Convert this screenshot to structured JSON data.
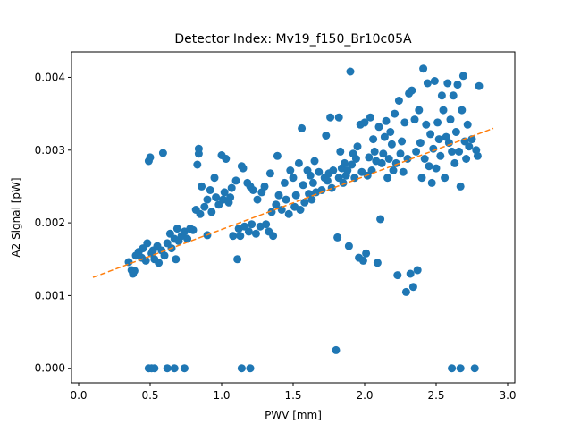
{
  "chart_data": {
    "type": "scatter",
    "title": "Detector Index: Mv19_f150_Br10c05A",
    "xlabel": "PWV [mm]",
    "ylabel": "A2 Signal [pW]",
    "xlim": [
      -0.05,
      3.05
    ],
    "ylim": [
      -0.0002,
      0.00435
    ],
    "xticks": [
      {
        "value": 0.0,
        "label": "0.0"
      },
      {
        "value": 0.5,
        "label": "0.5"
      },
      {
        "value": 1.0,
        "label": "1.0"
      },
      {
        "value": 1.5,
        "label": "1.5"
      },
      {
        "value": 2.0,
        "label": "2.0"
      },
      {
        "value": 2.5,
        "label": "2.5"
      },
      {
        "value": 3.0,
        "label": "3.0"
      }
    ],
    "yticks": [
      {
        "value": 0.0,
        "label": "0.000"
      },
      {
        "value": 0.001,
        "label": "0.001"
      },
      {
        "value": 0.002,
        "label": "0.002"
      },
      {
        "value": 0.003,
        "label": "0.003"
      },
      {
        "value": 0.004,
        "label": "0.004"
      }
    ],
    "grid": false,
    "series": [
      {
        "name": "data",
        "kind": "scatter",
        "color": "#1f77b4",
        "points": [
          [
            0.35,
            0.00146
          ],
          [
            0.37,
            0.00135
          ],
          [
            0.38,
            0.0013
          ],
          [
            0.39,
            0.00134
          ],
          [
            0.4,
            0.00155
          ],
          [
            0.42,
            0.0016
          ],
          [
            0.44,
            0.00152
          ],
          [
            0.45,
            0.00165
          ],
          [
            0.47,
            0.00148
          ],
          [
            0.48,
            0.00172
          ],
          [
            0.49,
            0.00285
          ],
          [
            0.5,
            0.0029
          ],
          [
            0.51,
            0.00158
          ],
          [
            0.52,
            0.00162
          ],
          [
            0.53,
            0.0015
          ],
          [
            0.55,
            0.00168
          ],
          [
            0.56,
            0.00145
          ],
          [
            0.58,
            0.00162
          ],
          [
            0.59,
            0.00296
          ],
          [
            0.6,
            0.00155
          ],
          [
            0.62,
            0.00172
          ],
          [
            0.64,
            0.00185
          ],
          [
            0.65,
            0.00165
          ],
          [
            0.67,
            0.00178
          ],
          [
            0.68,
            0.0015
          ],
          [
            0.69,
            0.00192
          ],
          [
            0.7,
            0.00175
          ],
          [
            0.72,
            0.00182
          ],
          [
            0.74,
            0.00188
          ],
          [
            0.76,
            0.00178
          ],
          [
            0.78,
            0.00192
          ],
          [
            0.8,
            0.0019
          ],
          [
            0.82,
            0.00218
          ],
          [
            0.83,
            0.0028
          ],
          [
            0.84,
            0.00295
          ],
          [
            0.84,
            0.00302
          ],
          [
            0.85,
            0.00212
          ],
          [
            0.86,
            0.0025
          ],
          [
            0.88,
            0.00222
          ],
          [
            0.9,
            0.00232
          ],
          [
            0.9,
            0.00183
          ],
          [
            0.92,
            0.00245
          ],
          [
            0.93,
            0.00215
          ],
          [
            0.95,
            0.00262
          ],
          [
            0.96,
            0.00235
          ],
          [
            0.98,
            0.00225
          ],
          [
            1.0,
            0.00293
          ],
          [
            1.01,
            0.00232
          ],
          [
            1.02,
            0.00242
          ],
          [
            1.03,
            0.00288
          ],
          [
            1.05,
            0.00228
          ],
          [
            1.06,
            0.00235
          ],
          [
            1.07,
            0.00248
          ],
          [
            1.08,
            0.00182
          ],
          [
            1.1,
            0.00258
          ],
          [
            1.11,
            0.0015
          ],
          [
            1.12,
            0.00192
          ],
          [
            1.13,
            0.00182
          ],
          [
            1.14,
            0.00278
          ],
          [
            1.15,
            0.00275
          ],
          [
            1.16,
            0.00195
          ],
          [
            1.18,
            0.00255
          ],
          [
            1.19,
            0.00188
          ],
          [
            1.2,
            0.0025
          ],
          [
            1.21,
            0.00198
          ],
          [
            1.22,
            0.00245
          ],
          [
            1.24,
            0.00185
          ],
          [
            1.25,
            0.00232
          ],
          [
            1.27,
            0.00195
          ],
          [
            1.28,
            0.00242
          ],
          [
            1.3,
            0.0025
          ],
          [
            1.31,
            0.00198
          ],
          [
            1.33,
            0.00188
          ],
          [
            1.34,
            0.00268
          ],
          [
            1.35,
            0.00215
          ],
          [
            1.36,
            0.00182
          ],
          [
            1.38,
            0.00225
          ],
          [
            1.39,
            0.00292
          ],
          [
            1.4,
            0.00238
          ],
          [
            1.42,
            0.00218
          ],
          [
            1.44,
            0.00255
          ],
          [
            1.45,
            0.00232
          ],
          [
            1.47,
            0.00212
          ],
          [
            1.48,
            0.00272
          ],
          [
            1.5,
            0.00262
          ],
          [
            1.51,
            0.00222
          ],
          [
            1.52,
            0.00238
          ],
          [
            1.54,
            0.00282
          ],
          [
            1.55,
            0.00218
          ],
          [
            1.56,
            0.0033
          ],
          [
            1.57,
            0.00252
          ],
          [
            1.58,
            0.00228
          ],
          [
            1.6,
            0.00272
          ],
          [
            1.61,
            0.0024
          ],
          [
            1.62,
            0.00265
          ],
          [
            1.63,
            0.00232
          ],
          [
            1.64,
            0.00255
          ],
          [
            1.65,
            0.00285
          ],
          [
            1.66,
            0.00242
          ],
          [
            1.68,
            0.0027
          ],
          [
            1.7,
            0.00245
          ],
          [
            1.72,
            0.00262
          ],
          [
            1.73,
            0.0032
          ],
          [
            1.74,
            0.00258
          ],
          [
            1.75,
            0.00268
          ],
          [
            1.76,
            0.00345
          ],
          [
            1.77,
            0.00248
          ],
          [
            1.78,
            0.00272
          ],
          [
            1.8,
            0.00025
          ],
          [
            1.81,
            0.0018
          ],
          [
            1.82,
            0.00262
          ],
          [
            1.82,
            0.00345
          ],
          [
            1.83,
            0.00298
          ],
          [
            1.84,
            0.00275
          ],
          [
            1.85,
            0.00255
          ],
          [
            1.86,
            0.00282
          ],
          [
            1.87,
            0.00265
          ],
          [
            1.88,
            0.00272
          ],
          [
            1.89,
            0.00168
          ],
          [
            1.9,
            0.00408
          ],
          [
            1.91,
            0.0028
          ],
          [
            1.92,
            0.00295
          ],
          [
            1.93,
            0.00262
          ],
          [
            1.94,
            0.00288
          ],
          [
            1.95,
            0.00305
          ],
          [
            1.96,
            0.00152
          ],
          [
            1.97,
            0.00335
          ],
          [
            1.98,
            0.0027
          ],
          [
            1.99,
            0.00148
          ],
          [
            2.0,
            0.00338
          ],
          [
            2.01,
            0.00158
          ],
          [
            2.02,
            0.00265
          ],
          [
            2.03,
            0.0029
          ],
          [
            2.04,
            0.00345
          ],
          [
            2.05,
            0.00272
          ],
          [
            2.06,
            0.00315
          ],
          [
            2.07,
            0.00298
          ],
          [
            2.08,
            0.00285
          ],
          [
            2.09,
            0.00145
          ],
          [
            2.1,
            0.00332
          ],
          [
            2.11,
            0.00205
          ],
          [
            2.12,
            0.00282
          ],
          [
            2.13,
            0.00295
          ],
          [
            2.14,
            0.00318
          ],
          [
            2.15,
            0.0034
          ],
          [
            2.16,
            0.00262
          ],
          [
            2.17,
            0.00288
          ],
          [
            2.18,
            0.00325
          ],
          [
            2.19,
            0.00308
          ],
          [
            2.2,
            0.00272
          ],
          [
            2.21,
            0.0035
          ],
          [
            2.22,
            0.00282
          ],
          [
            2.23,
            0.00128
          ],
          [
            2.24,
            0.00368
          ],
          [
            2.25,
            0.00295
          ],
          [
            2.26,
            0.00312
          ],
          [
            2.27,
            0.0027
          ],
          [
            2.28,
            0.00338
          ],
          [
            2.29,
            0.00105
          ],
          [
            2.3,
            0.00288
          ],
          [
            2.31,
            0.00378
          ],
          [
            2.32,
            0.0013
          ],
          [
            2.33,
            0.00382
          ],
          [
            2.34,
            0.00112
          ],
          [
            2.35,
            0.00342
          ],
          [
            2.36,
            0.00298
          ],
          [
            2.37,
            0.00135
          ],
          [
            2.38,
            0.00355
          ],
          [
            2.39,
            0.0031
          ],
          [
            2.4,
            0.00262
          ],
          [
            2.41,
            0.00412
          ],
          [
            2.42,
            0.00288
          ],
          [
            2.43,
            0.00335
          ],
          [
            2.44,
            0.00392
          ],
          [
            2.45,
            0.00278
          ],
          [
            2.46,
            0.00322
          ],
          [
            2.47,
            0.00255
          ],
          [
            2.48,
            0.00302
          ],
          [
            2.49,
            0.00395
          ],
          [
            2.5,
            0.00275
          ],
          [
            2.51,
            0.00338
          ],
          [
            2.52,
            0.00315
          ],
          [
            2.53,
            0.00292
          ],
          [
            2.54,
            0.00375
          ],
          [
            2.55,
            0.00355
          ],
          [
            2.56,
            0.00262
          ],
          [
            2.57,
            0.00318
          ],
          [
            2.58,
            0.00392
          ],
          [
            2.59,
            0.0031
          ],
          [
            2.6,
            0.00342
          ],
          [
            2.61,
            0.00298
          ],
          [
            2.62,
            0.00375
          ],
          [
            2.63,
            0.00282
          ],
          [
            2.64,
            0.00325
          ],
          [
            2.65,
            0.0039
          ],
          [
            2.66,
            0.00298
          ],
          [
            2.67,
            0.0025
          ],
          [
            2.68,
            0.00355
          ],
          [
            2.69,
            0.00402
          ],
          [
            2.7,
            0.00312
          ],
          [
            2.71,
            0.00288
          ],
          [
            2.72,
            0.00335
          ],
          [
            2.73,
            0.00305
          ],
          [
            2.75,
            0.00315
          ],
          [
            2.78,
            0.003
          ],
          [
            2.79,
            0.00292
          ],
          [
            2.8,
            0.00388
          ],
          [
            0.49,
            0.0
          ],
          [
            0.51,
            0.0
          ],
          [
            0.53,
            0.0
          ],
          [
            0.62,
            0.0
          ],
          [
            0.67,
            0.0
          ],
          [
            0.74,
            0.0
          ],
          [
            1.14,
            0.0
          ],
          [
            1.2,
            0.0
          ],
          [
            2.61,
            0.0
          ],
          [
            2.67,
            0.0
          ],
          [
            2.77,
            0.0
          ]
        ]
      },
      {
        "name": "fit",
        "kind": "line",
        "style": "dashed",
        "color": "#ff7f0e",
        "points": [
          [
            0.1,
            0.00125
          ],
          [
            2.9,
            0.0033
          ]
        ]
      }
    ]
  }
}
